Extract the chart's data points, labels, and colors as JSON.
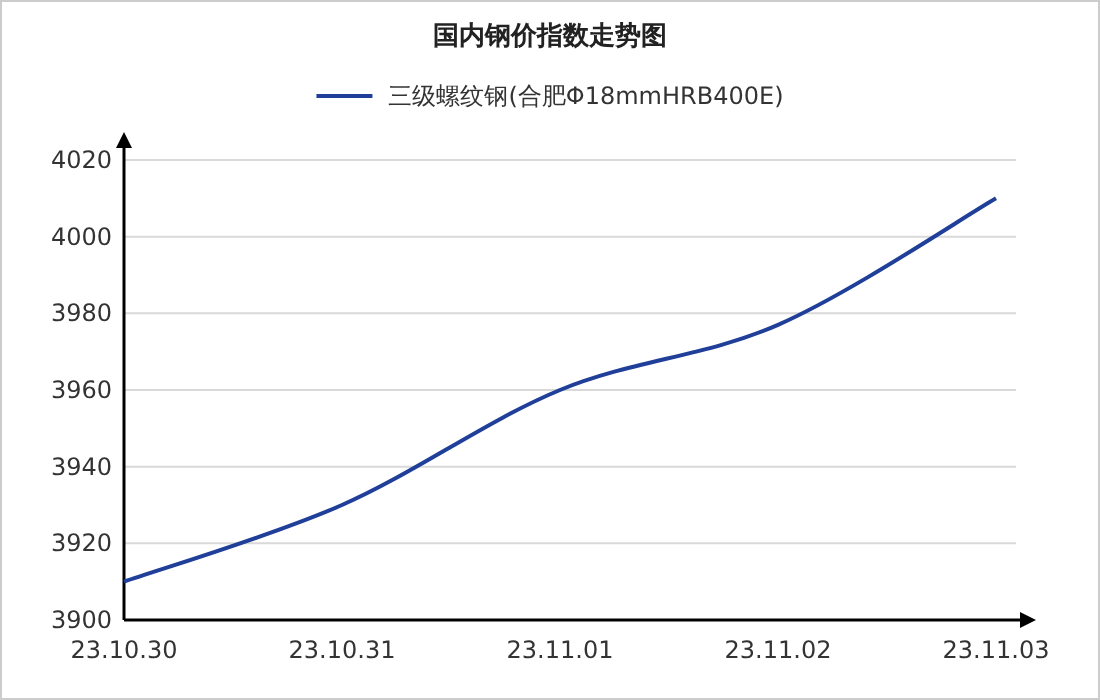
{
  "chart_data": {
    "type": "line",
    "title": "国内钢价指数走势图",
    "categories": [
      "23.10.30",
      "23.10.31",
      "23.11.01",
      "23.11.02",
      "23.11.03"
    ],
    "series": [
      {
        "name": "三级螺纹钢(合肥Φ18mmHRB400E)",
        "color": "#1f3f99",
        "values": [
          3910,
          3930,
          3960,
          3977,
          4010
        ]
      }
    ],
    "ylim": [
      3900,
      4020
    ],
    "yticks": [
      3900,
      3920,
      3940,
      3960,
      3980,
      4000,
      4020
    ],
    "grid": "y",
    "legend": "top",
    "marker": "none",
    "line_style": "solid"
  }
}
